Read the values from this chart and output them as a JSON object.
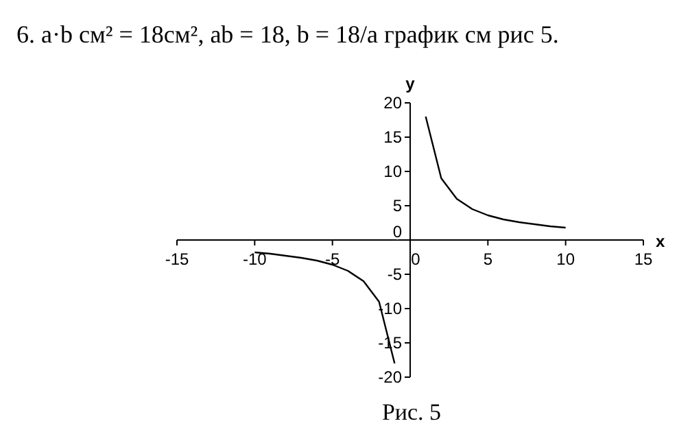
{
  "chart_data": {
    "type": "line",
    "title": "6. a·b см² = 18см², ab = 18, b = 18/a график см рис 5.",
    "xlabel": "x",
    "ylabel": "y",
    "annotations": [
      "Рис. 5"
    ],
    "xlim": [
      -15,
      15
    ],
    "xticks": [
      -15,
      -10,
      -5,
      0,
      5,
      10,
      15
    ],
    "ylim": [
      -20,
      20
    ],
    "yticks": [
      -20,
      -15,
      -10,
      -5,
      0,
      5,
      10,
      15,
      20
    ],
    "series": [
      {
        "color": "#000000",
        "x": [
          1,
          2,
          3,
          4,
          5,
          6,
          7,
          8,
          9,
          10
        ],
        "values": [
          18,
          9,
          6,
          4.5,
          3.6,
          3,
          2.6,
          2.3,
          2,
          1.8
        ]
      },
      {
        "color": "#000000",
        "x": [
          -1,
          -2,
          -3,
          -4,
          -5,
          -6,
          -7,
          -8,
          -9,
          -10
        ],
        "values": [
          -18,
          -9,
          -6,
          -4.5,
          -3.6,
          -3,
          -2.6,
          -2.3,
          -2,
          -1.8
        ]
      }
    ]
  }
}
